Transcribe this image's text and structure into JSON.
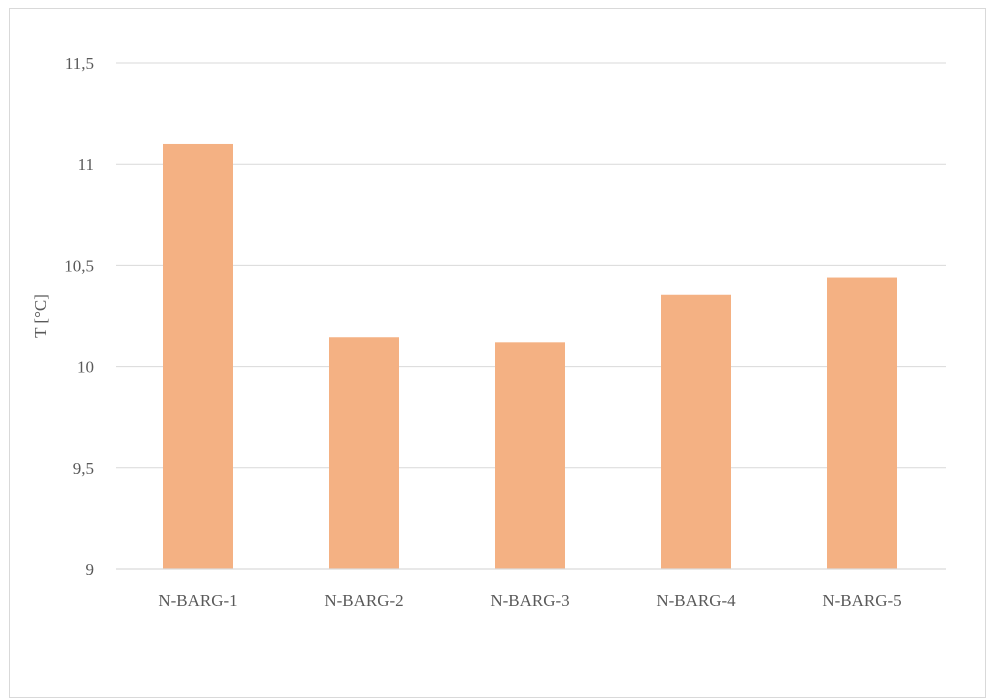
{
  "chart_data": {
    "type": "bar",
    "title": "",
    "xlabel": "",
    "ylabel": "T [°C]",
    "categories": [
      "N-BARG-1",
      "N-BARG-2",
      "N-BARG-3",
      "N-BARG-4",
      "N-BARG-5"
    ],
    "values": [
      11.1,
      10.145,
      10.12,
      10.355,
      10.44
    ],
    "ylim": [
      9,
      11.5
    ],
    "yticks": [
      9,
      9.5,
      10,
      10.5,
      11,
      11.5
    ],
    "ytick_labels": [
      "9",
      "9,5",
      "10",
      "10,5",
      "11",
      "11,5"
    ],
    "grid": true,
    "legend": "none",
    "bar_color": "#f4b183",
    "grid_color": "#d9d9d9",
    "text_color": "#595959"
  }
}
